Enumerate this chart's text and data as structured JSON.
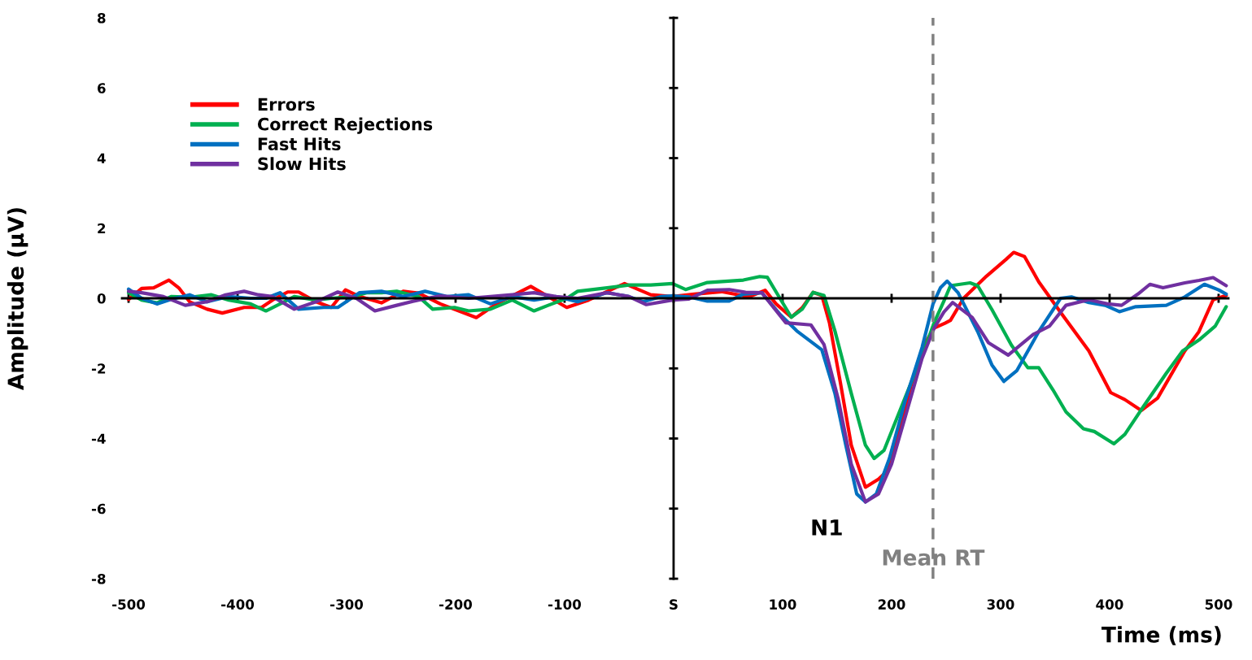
{
  "chart_data": {
    "type": "line",
    "xlabel": "Time (ms)",
    "ylabel": "Amplitude (µV)",
    "xlim": [
      -506,
      509
    ],
    "ylim": [
      -8,
      8
    ],
    "xticks": [
      -500,
      -400,
      -300,
      -200,
      -100,
      {
        "value": 0,
        "label": "S"
      },
      100,
      200,
      300,
      400,
      500
    ],
    "yticks": [
      -8,
      -6,
      -4,
      -2,
      0,
      2,
      4,
      6,
      8
    ],
    "legend": "top left",
    "ref_lines": [
      {
        "axis": "x",
        "value": 238,
        "label": "Mean RT",
        "color": "#808080",
        "line_style": "dashed"
      }
    ],
    "annotations": [
      "N1"
    ],
    "series": [
      {
        "name": "Errors",
        "color": "#ff0000",
        "x": [
          -500,
          -488,
          -477,
          -463,
          -454,
          -444,
          -428,
          -414,
          -394,
          -378,
          -368,
          -354,
          -344,
          -328,
          -314,
          -301,
          -288,
          -268,
          -248,
          -234,
          -214,
          -181,
          -161,
          -131,
          -115,
          -98,
          -78,
          -45,
          -21,
          -1,
          19,
          44,
          69,
          84,
          94,
          108,
          118,
          128,
          136,
          143,
          153,
          163,
          176,
          188,
          195,
          205,
          218,
          230,
          239,
          249,
          254,
          266,
          287,
          305,
          312,
          322,
          335,
          355,
          381,
          401,
          414,
          429,
          444,
          469,
          482,
          495,
          507
        ],
        "values": [
          -0.03,
          0.28,
          0.3,
          0.52,
          0.3,
          -0.1,
          -0.31,
          -0.42,
          -0.26,
          -0.26,
          -0.05,
          0.18,
          0.18,
          -0.1,
          -0.26,
          0.24,
          0.05,
          -0.13,
          0.2,
          0.15,
          -0.16,
          -0.55,
          -0.13,
          0.34,
          0.05,
          -0.26,
          -0.05,
          0.42,
          0.1,
          0.05,
          0.12,
          0.19,
          0.04,
          0.23,
          -0.16,
          -0.54,
          -0.27,
          0.17,
          0.08,
          -0.7,
          -2.4,
          -4.19,
          -5.39,
          -5.16,
          -4.96,
          -3.95,
          -2.48,
          -1.32,
          -0.85,
          -0.71,
          -0.63,
          0,
          0.63,
          1.11,
          1.31,
          1.19,
          0.47,
          -0.4,
          -1.5,
          -2.69,
          -2.89,
          -3.2,
          -2.85,
          -1.5,
          -0.95,
          -0.04,
          0.08
        ]
      },
      {
        "name": "Correct Rejections",
        "color": "#00b050",
        "x": [
          -500,
          -488,
          -474,
          -461,
          -444,
          -424,
          -408,
          -388,
          -374,
          -361,
          -348,
          -328,
          -314,
          -294,
          -281,
          -268,
          -254,
          -234,
          -221,
          -201,
          -188,
          -168,
          -148,
          -128,
          -115,
          -98,
          -88,
          -61,
          -41,
          -21,
          -1,
          11,
          31,
          64,
          79,
          86,
          96,
          108,
          118,
          128,
          138,
          148,
          163,
          176,
          184,
          193,
          205,
          218,
          230,
          239,
          248,
          254,
          272,
          279,
          292,
          310,
          325,
          335,
          348,
          360,
          376,
          386,
          404,
          414,
          431,
          452,
          467,
          482,
          497,
          507
        ],
        "values": [
          0.16,
          -0.05,
          -0.13,
          0.05,
          0.03,
          0.1,
          -0.05,
          -0.16,
          -0.36,
          -0.16,
          0.05,
          -0.05,
          0,
          0.05,
          0.16,
          0.16,
          0.2,
          0.05,
          -0.31,
          -0.26,
          -0.36,
          -0.31,
          -0.05,
          -0.36,
          -0.2,
          0,
          0.2,
          0.3,
          0.38,
          0.38,
          0.42,
          0.25,
          0.45,
          0.52,
          0.62,
          0.6,
          0.08,
          -0.54,
          -0.31,
          0.17,
          0.08,
          -0.93,
          -2.71,
          -4.19,
          -4.57,
          -4.34,
          -3.41,
          -2.4,
          -1.47,
          -0.7,
          -0.08,
          0.36,
          0.44,
          0.36,
          -0.32,
          -1.34,
          -1.98,
          -1.98,
          -2.61,
          -3.24,
          -3.72,
          -3.8,
          -4.15,
          -3.88,
          -3.09,
          -2.14,
          -1.5,
          -1.19,
          -0.79,
          -0.24
        ]
      },
      {
        "name": "Fast Hits",
        "color": "#0070c0",
        "x": [
          -500,
          -488,
          -474,
          -461,
          -444,
          -428,
          -408,
          -388,
          -374,
          -361,
          -344,
          -321,
          -308,
          -288,
          -268,
          -248,
          -228,
          -208,
          -188,
          -168,
          -148,
          -128,
          -108,
          -88,
          -61,
          -41,
          -28,
          -11,
          -1,
          14,
          31,
          51,
          64,
          81,
          98,
          113,
          136,
          148,
          158,
          168,
          176,
          186,
          198,
          213,
          228,
          238,
          245,
          251,
          261,
          279,
          292,
          303,
          315,
          335,
          355,
          365,
          381,
          396,
          409,
          424,
          452,
          469,
          487,
          500,
          507
        ],
        "values": [
          0.26,
          0,
          -0.16,
          -0.03,
          0.1,
          -0.1,
          0.05,
          0,
          0,
          0.16,
          -0.31,
          -0.26,
          -0.26,
          0.16,
          0.2,
          0.05,
          0.2,
          0.05,
          0.1,
          -0.16,
          0.05,
          -0.05,
          0.05,
          -0.1,
          0.16,
          0.05,
          -0.1,
          0.05,
          0.07,
          0.04,
          -0.08,
          -0.08,
          0.12,
          0.16,
          -0.47,
          -0.93,
          -1.47,
          -2.71,
          -4.19,
          -5.58,
          -5.81,
          -5.58,
          -4.57,
          -2.87,
          -1.4,
          -0.16,
          0.31,
          0.49,
          0.16,
          -0.95,
          -1.9,
          -2.37,
          -2.06,
          -0.95,
          0,
          0.04,
          -0.12,
          -0.2,
          -0.38,
          -0.24,
          -0.2,
          0.04,
          0.4,
          0.24,
          0.12
        ]
      },
      {
        "name": "Slow Hits",
        "color": "#7030a0",
        "x": [
          -500,
          -488,
          -468,
          -448,
          -428,
          -411,
          -394,
          -381,
          -368,
          -348,
          -328,
          -308,
          -291,
          -274,
          -254,
          -234,
          -214,
          -188,
          -168,
          -148,
          -128,
          -108,
          -88,
          -61,
          -41,
          -25,
          -1,
          14,
          31,
          51,
          66,
          81,
          103,
          126,
          138,
          151,
          163,
          176,
          188,
          200,
          213,
          228,
          239,
          248,
          256,
          274,
          289,
          307,
          330,
          345,
          360,
          381,
          398,
          411,
          426,
          437,
          449,
          469,
          482,
          495,
          507
        ],
        "values": [
          0.2,
          0.16,
          0.05,
          -0.2,
          -0.1,
          0.1,
          0.2,
          0.1,
          0.05,
          -0.31,
          -0.1,
          0.18,
          0,
          -0.36,
          -0.2,
          -0.05,
          0.07,
          0,
          0.05,
          0.1,
          0.16,
          0.05,
          0,
          0.16,
          0.05,
          -0.18,
          -0.05,
          -0.02,
          0.23,
          0.25,
          0.17,
          0.16,
          -0.7,
          -0.76,
          -1.32,
          -2.87,
          -4.73,
          -5.81,
          -5.58,
          -4.73,
          -3.33,
          -1.71,
          -0.85,
          -0.39,
          -0.12,
          -0.55,
          -1.27,
          -1.62,
          -1.03,
          -0.79,
          -0.2,
          -0.04,
          -0.16,
          -0.2,
          0.12,
          0.4,
          0.3,
          0.44,
          0.51,
          0.59,
          0.36
        ]
      }
    ]
  }
}
